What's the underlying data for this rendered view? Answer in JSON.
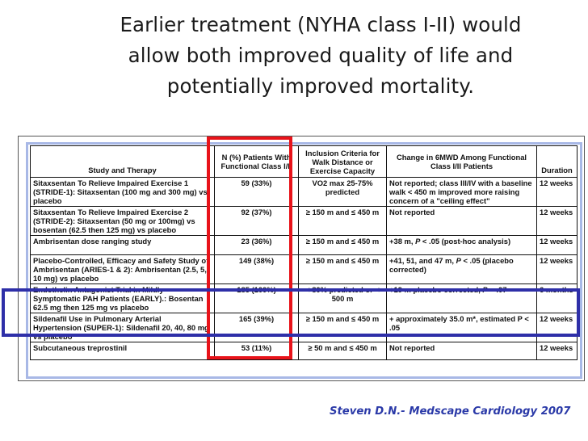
{
  "slide": {
    "headline_lines": [
      "Earlier treatment (NYHA class I-II) would",
      "allow both improved quality of life and",
      "potentially improved mortality."
    ],
    "citation": "Steven D.N.- Medscape Cardiology 2007",
    "colors": {
      "highlight_column": "#e8131a",
      "highlight_row": "#2e2fa8",
      "citation": "#2b3aa8"
    }
  },
  "table": {
    "headers": {
      "study": "Study and Therapy",
      "patients": "N (%) Patients With Functional Class I/II",
      "inclusion": "Inclusion Criteria for Walk Distance or Exercise Capacity",
      "change": "Change in 6MWD Among Functional Class I/II Patients",
      "duration": "Duration"
    },
    "rows": [
      {
        "study": "Sitaxsentan To Relieve Impaired Exercise 1 (STRIDE-1): Sitaxsentan (100 mg and 300 mg) vs placebo",
        "patients": "59 (33%)",
        "inclusion": "VO2 max 25-75% predicted",
        "change": "Not reported; class III/IV with a baseline walk < 450 m improved more raising concern of a \"ceiling effect\"",
        "duration": "12 weeks"
      },
      {
        "study": "Sitaxsentan To Relieve Impaired Exercise 2 (STRIDE-2): Sitaxsentan (50 mg or 100mg) vs bosentan (62.5 then 125 mg) vs placebo",
        "patients": "92 (37%)",
        "inclusion": "≥ 150 m and ≤ 450 m",
        "change": "Not reported",
        "duration": "12 weeks"
      },
      {
        "study": "Ambrisentan dose ranging study",
        "patients": "23 (36%)",
        "inclusion": "≥ 150 m and ≤ 450 m",
        "change_prefix": "+38 m, ",
        "change_p": "P",
        "change_suffix": " < .05 (post-hoc analysis)",
        "duration": "12 weeks"
      },
      {
        "study": "Placebo-Controlled, Efficacy and Safety Study of Ambrisentan (ARIES-1 & 2): Ambrisentan (2.5, 5, 10 mg) vs placebo",
        "patients": "149 (38%)",
        "inclusion": "≥ 150 m and ≤ 450 m",
        "change_prefix": "+41, 51, and 47 m, ",
        "change_p": "P",
        "change_suffix": " < .05 (placebo corrected)",
        "duration": "12 weeks"
      },
      {
        "study": "Endothelin Antagonist Trial in Mildly Symptomatic PAH Patients (EARLY).: Bosentan 62.5 mg then 125 mg vs placebo",
        "patients": "185 (100%)",
        "inclusion": "< 80% predicted or < 500 m",
        "change_prefix": "+19 m placebo corrected, ",
        "change_p": "P",
        "change_suffix": " = .07",
        "duration": "6 months"
      },
      {
        "study": "Sildenafil Use in Pulmonary Arterial Hypertension (SUPER-1): Sildenafil 20, 40, 80 mg vs placebo",
        "patients": "165 (39%)",
        "inclusion": "≥ 150 m and ≤ 450 m",
        "change": "+ approximately 35.0 m*, estimated P < .05",
        "duration": "12 weeks"
      },
      {
        "study": "Subcutaneous treprostinil",
        "patients": "53 (11%)",
        "inclusion": "≥ 50 m and ≤ 450 m",
        "change": "Not reported",
        "duration": "12 weeks"
      }
    ]
  }
}
